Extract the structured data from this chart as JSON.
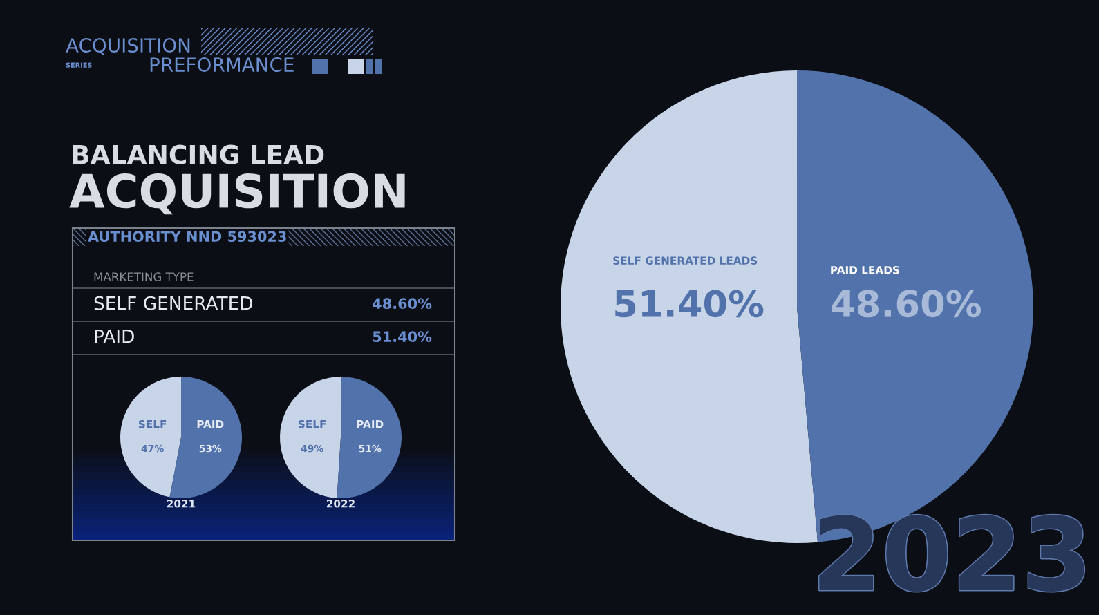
{
  "chart_data": [
    {
      "type": "other",
      "title": "BALANCING LEAD",
      "subtitle": "ACQUISITION",
      "annotations": [
        "ACQUISITION",
        "SERIES",
        "PREFORMANCE"
      ]
    },
    {
      "type": "other",
      "title": "AUTHORITY NND 593023",
      "subtitle": "MARKETING TYPE",
      "categories": [
        "SELF GENERATED",
        "PAID"
      ],
      "value_labels": [
        "48.60%",
        "51.40%"
      ]
    },
    {
      "type": "pie",
      "xlabel": "2021",
      "categories": [
        "SELF",
        "PAID"
      ],
      "values": [
        47,
        53
      ],
      "colors": [
        "#c8d5e9",
        "#5172ab"
      ],
      "value_labels": [
        "47%",
        "53%"
      ]
    },
    {
      "type": "pie",
      "xlabel": "2022",
      "categories": [
        "SELF",
        "PAID"
      ],
      "values": [
        49,
        51
      ],
      "colors": [
        "#c8d5e9",
        "#5172ab"
      ],
      "value_labels": [
        "49%",
        "51%"
      ]
    },
    {
      "type": "pie",
      "categories": [
        "SELF GENERATED LEADS",
        "PAID LEADS"
      ],
      "values": [
        51.4,
        48.6
      ],
      "colors": [
        "#c8d5e9",
        "#5172ab"
      ],
      "value_labels": [
        "51.40%",
        "48.60%"
      ],
      "annotations": [
        "2023"
      ]
    }
  ]
}
